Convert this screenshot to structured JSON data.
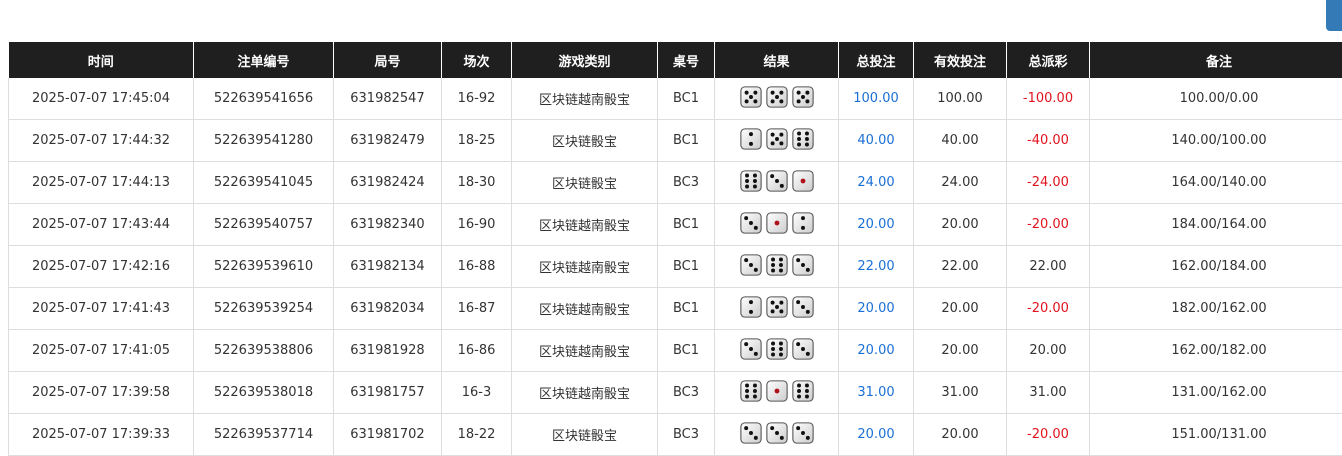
{
  "colors": {
    "header_bg": "#1f1f1f",
    "bet_blue": "#1a6fd6",
    "loss_red": "#e0141e",
    "button_blue": "#337ab7"
  },
  "table": {
    "headers": [
      "时间",
      "注单编号",
      "局号",
      "场次",
      "游戏类别",
      "桌号",
      "结果",
      "总投注",
      "有效投注",
      "总派彩",
      "备注"
    ],
    "rows": [
      {
        "time": "2025-07-07 17:45:04",
        "bet_id": "522639541656",
        "round": "631982547",
        "session": "16-92",
        "game": "区块链越南骰宝",
        "table": "BC1",
        "dice": [
          5,
          5,
          5
        ],
        "total_bet": "100.00",
        "valid_bet": "100.00",
        "payout": "-100.00",
        "note": "100.00/0.00"
      },
      {
        "time": "2025-07-07 17:44:32",
        "bet_id": "522639541280",
        "round": "631982479",
        "session": "18-25",
        "game": "区块链骰宝",
        "table": "BC1",
        "dice": [
          2,
          5,
          6
        ],
        "total_bet": "40.00",
        "valid_bet": "40.00",
        "payout": "-40.00",
        "note": "140.00/100.00"
      },
      {
        "time": "2025-07-07 17:44:13",
        "bet_id": "522639541045",
        "round": "631982424",
        "session": "18-30",
        "game": "区块链骰宝",
        "table": "BC3",
        "dice": [
          6,
          3,
          1
        ],
        "total_bet": "24.00",
        "valid_bet": "24.00",
        "payout": "-24.00",
        "note": "164.00/140.00"
      },
      {
        "time": "2025-07-07 17:43:44",
        "bet_id": "522639540757",
        "round": "631982340",
        "session": "16-90",
        "game": "区块链越南骰宝",
        "table": "BC1",
        "dice": [
          3,
          1,
          2
        ],
        "total_bet": "20.00",
        "valid_bet": "20.00",
        "payout": "-20.00",
        "note": "184.00/164.00"
      },
      {
        "time": "2025-07-07 17:42:16",
        "bet_id": "522639539610",
        "round": "631982134",
        "session": "16-88",
        "game": "区块链越南骰宝",
        "table": "BC1",
        "dice": [
          3,
          6,
          3
        ],
        "total_bet": "22.00",
        "valid_bet": "22.00",
        "payout": "22.00",
        "note": "162.00/184.00"
      },
      {
        "time": "2025-07-07 17:41:43",
        "bet_id": "522639539254",
        "round": "631982034",
        "session": "16-87",
        "game": "区块链越南骰宝",
        "table": "BC1",
        "dice": [
          2,
          5,
          3
        ],
        "total_bet": "20.00",
        "valid_bet": "20.00",
        "payout": "-20.00",
        "note": "182.00/162.00"
      },
      {
        "time": "2025-07-07 17:41:05",
        "bet_id": "522639538806",
        "round": "631981928",
        "session": "16-86",
        "game": "区块链越南骰宝",
        "table": "BC1",
        "dice": [
          3,
          6,
          3
        ],
        "total_bet": "20.00",
        "valid_bet": "20.00",
        "payout": "20.00",
        "note": "162.00/182.00"
      },
      {
        "time": "2025-07-07 17:39:58",
        "bet_id": "522639538018",
        "round": "631981757",
        "session": "16-3",
        "game": "区块链越南骰宝",
        "table": "BC3",
        "dice": [
          6,
          1,
          6
        ],
        "total_bet": "31.00",
        "valid_bet": "31.00",
        "payout": "31.00",
        "note": "131.00/162.00"
      },
      {
        "time": "2025-07-07 17:39:33",
        "bet_id": "522639537714",
        "round": "631981702",
        "session": "18-22",
        "game": "区块链骰宝",
        "table": "BC3",
        "dice": [
          3,
          3,
          3
        ],
        "total_bet": "20.00",
        "valid_bet": "20.00",
        "payout": "-20.00",
        "note": "151.00/131.00"
      }
    ]
  }
}
